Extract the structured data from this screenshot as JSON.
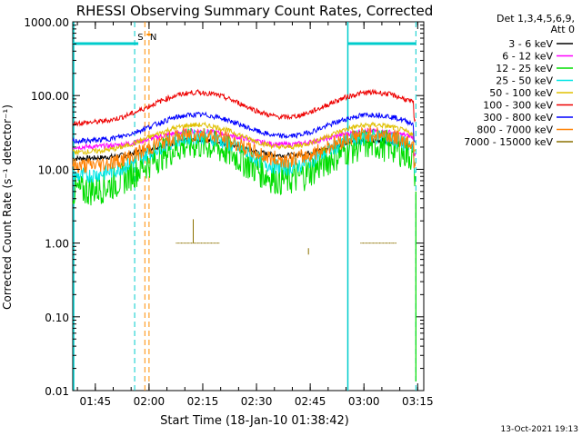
{
  "chart_data": {
    "type": "line",
    "title": "RHESSI Observing Summary Count Rates, Corrected",
    "xlabel": "Start Time (18-Jan-10 01:38:42)",
    "ylabel": "Corrected Count Rate (s⁻¹ detector⁻¹)",
    "yscale": "log",
    "ylim": [
      0.01,
      1000
    ],
    "xlim_minutes_after_start": [
      0,
      98
    ],
    "x_ticks": [
      "01:45",
      "02:00",
      "02:15",
      "02:30",
      "02:45",
      "03:00",
      "03:15"
    ],
    "y_ticks": [
      "1000.00",
      "100.00",
      "10.00",
      "1.00",
      "0.10",
      "0.01"
    ],
    "legend_header": [
      "Det 1,3,4,5,6,9,",
      "Att 0"
    ],
    "legend_placement": "right",
    "footer_date": "13-Oct-2021 19:13",
    "markers": [
      {
        "label": "S",
        "color": "#ff8c00",
        "time": "01:58:50"
      },
      {
        "label": "N",
        "color": "#ff8c00",
        "time": "02:00:00"
      }
    ],
    "series": [
      {
        "name": "3 - 6 keV",
        "color": "#000000",
        "base": 14,
        "peak1": 25,
        "peak2": 25
      },
      {
        "name": "6 - 12 keV",
        "color": "#ff00ff",
        "base": 20,
        "peak1": 33,
        "peak2": 32
      },
      {
        "name": "12 - 25 keV",
        "color": "#00dd00",
        "base": 5,
        "peak1": 22,
        "peak2": 22
      },
      {
        "name": "25 - 50 keV",
        "color": "#00e5e5",
        "base": 8,
        "peak1": 28,
        "peak2": 28
      },
      {
        "name": "50 - 100 keV",
        "color": "#e0c000",
        "base": 17,
        "peak1": 40,
        "peak2": 40
      },
      {
        "name": "100 - 300 keV",
        "color": "#ee0000",
        "base": 42,
        "peak1": 110,
        "peak2": 110
      },
      {
        "name": "300 - 800 keV",
        "color": "#0000ff",
        "base": 24,
        "peak1": 55,
        "peak2": 55
      },
      {
        "name": "800 - 7000 keV",
        "color": "#ff8000",
        "base": 11,
        "peak1": 30,
        "peak2": 30
      },
      {
        "name": "7000 - 15000 keV",
        "color": "#8b7000",
        "base": 1,
        "peak1": 1,
        "peak2": 1
      }
    ]
  }
}
